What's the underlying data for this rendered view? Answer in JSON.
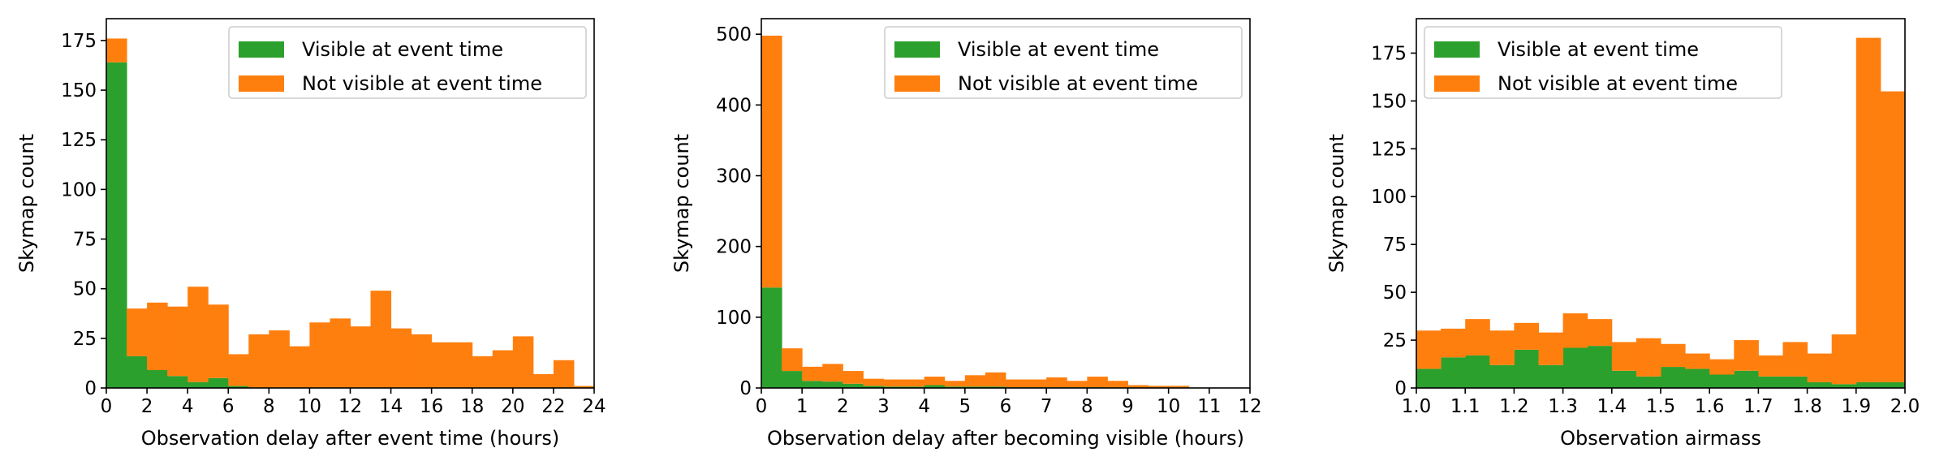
{
  "chart_data": [
    {
      "type": "bar",
      "stacked": true,
      "xlabel": "Observation delay after event time (hours)",
      "ylabel": "Skymap count",
      "xlim": [
        0,
        24
      ],
      "ylim": [
        0,
        186
      ],
      "xticks": [
        0,
        2,
        4,
        6,
        8,
        10,
        12,
        14,
        16,
        18,
        20,
        22,
        24
      ],
      "yticks": [
        0,
        25,
        50,
        75,
        100,
        125,
        150,
        175
      ],
      "bin_width": 1,
      "bin_starts": [
        0,
        1,
        2,
        3,
        4,
        5,
        6,
        7,
        8,
        9,
        10,
        11,
        12,
        13,
        14,
        15,
        16,
        17,
        18,
        19,
        20,
        21,
        22,
        23
      ],
      "legend_position": "upper-right",
      "series": [
        {
          "name": "Visible at event time",
          "color": "#2ca02c",
          "values": [
            164,
            16,
            9,
            6,
            3,
            5,
            1,
            0,
            0,
            0,
            0,
            0,
            0,
            0,
            0,
            0,
            0,
            0,
            0,
            0,
            0,
            0,
            0,
            0
          ]
        },
        {
          "name": "Not visible at event time",
          "color": "#ff7f0e",
          "values": [
            12,
            24,
            34,
            35,
            48,
            37,
            16,
            27,
            29,
            21,
            33,
            35,
            31,
            49,
            30,
            27,
            23,
            23,
            16,
            19,
            26,
            7,
            14,
            1
          ]
        }
      ]
    },
    {
      "type": "bar",
      "stacked": true,
      "xlabel": "Observation delay after becoming visible (hours)",
      "ylabel": "Skymap count",
      "xlim": [
        0,
        12
      ],
      "ylim": [
        0,
        522
      ],
      "xticks": [
        0,
        1,
        2,
        3,
        4,
        5,
        6,
        7,
        8,
        9,
        10,
        11,
        12
      ],
      "yticks": [
        0,
        100,
        200,
        300,
        400,
        500
      ],
      "bin_width": 0.5,
      "bin_starts": [
        0,
        0.5,
        1,
        1.5,
        2,
        2.5,
        3,
        3.5,
        4,
        4.5,
        5,
        5.5,
        6,
        6.5,
        7,
        7.5,
        8,
        8.5,
        9,
        9.5,
        10,
        10.5,
        11,
        11.5
      ],
      "legend_position": "upper-right",
      "series": [
        {
          "name": "Visible at event time",
          "color": "#2ca02c",
          "values": [
            142,
            24,
            10,
            9,
            6,
            3,
            2,
            2,
            4,
            2,
            2,
            2,
            1,
            1,
            1,
            1,
            1,
            0,
            0,
            0,
            0,
            0,
            0,
            0
          ]
        },
        {
          "name": "Not visible at event time",
          "color": "#ff7f0e",
          "values": [
            356,
            32,
            20,
            25,
            18,
            10,
            10,
            10,
            12,
            8,
            16,
            20,
            11,
            11,
            14,
            9,
            15,
            10,
            4,
            3,
            3,
            0,
            0,
            0
          ]
        }
      ]
    },
    {
      "type": "bar",
      "stacked": true,
      "xlabel": "Observation airmass",
      "ylabel": "Skymap count",
      "xlim": [
        1.0,
        2.0
      ],
      "ylim": [
        0,
        193
      ],
      "xticks": [
        1.0,
        1.1,
        1.2,
        1.3,
        1.4,
        1.5,
        1.6,
        1.7,
        1.8,
        1.9,
        2.0
      ],
      "xtick_labels": [
        "1.0",
        "1.1",
        "1.2",
        "1.3",
        "1.4",
        "1.5",
        "1.6",
        "1.7",
        "1.8",
        "1.9",
        "2.0"
      ],
      "yticks": [
        0,
        25,
        50,
        75,
        100,
        125,
        150,
        175
      ],
      "bin_width": 0.05,
      "bin_starts": [
        1.0,
        1.05,
        1.1,
        1.15,
        1.2,
        1.25,
        1.3,
        1.35,
        1.4,
        1.45,
        1.5,
        1.55,
        1.6,
        1.65,
        1.7,
        1.75,
        1.8,
        1.85,
        1.9,
        1.95
      ],
      "legend_position": "upper-left",
      "series": [
        {
          "name": "Visible at event time",
          "color": "#2ca02c",
          "values": [
            10,
            16,
            17,
            12,
            20,
            12,
            21,
            22,
            9,
            6,
            11,
            10,
            7,
            9,
            6,
            6,
            3,
            2,
            3,
            3
          ]
        },
        {
          "name": "Not visible at event time",
          "color": "#ff7f0e",
          "values": [
            20,
            15,
            19,
            18,
            14,
            17,
            18,
            14,
            15,
            20,
            12,
            8,
            8,
            16,
            11,
            18,
            15,
            26,
            180,
            152
          ]
        }
      ]
    }
  ]
}
